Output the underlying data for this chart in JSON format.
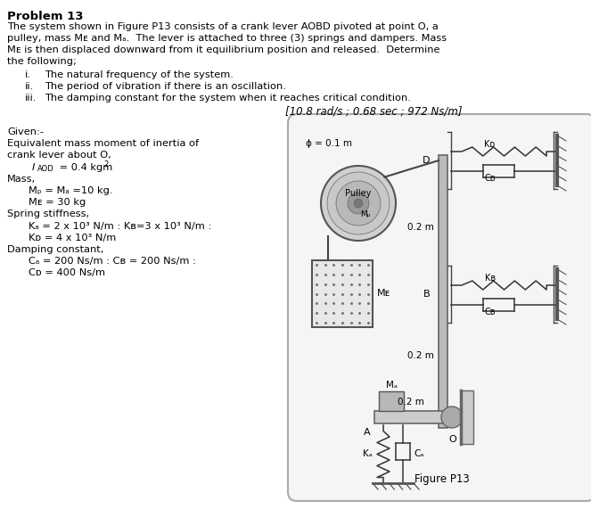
{
  "title": "Problem 13",
  "bg_color": "#ffffff",
  "text_color": "#000000",
  "fig_width": 6.63,
  "fig_height": 5.71,
  "figure_label": "Figure P13",
  "answer": "[10.8 rad/s ; 0.68 sec ; 972 Ns/m]"
}
